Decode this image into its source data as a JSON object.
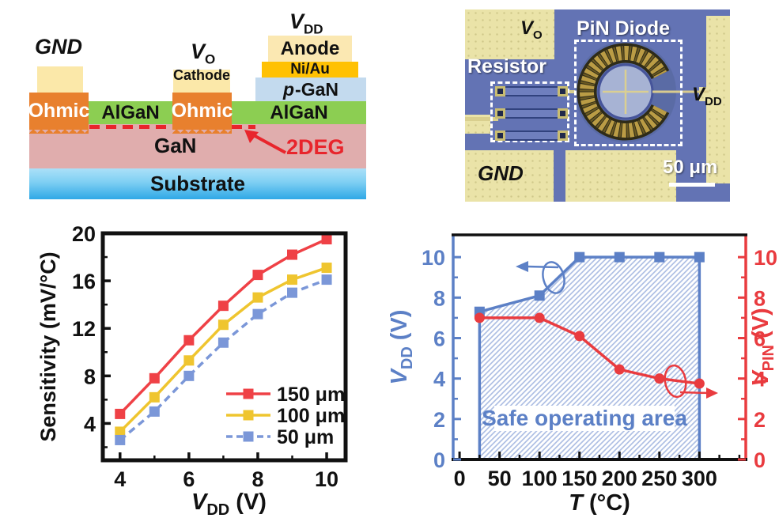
{
  "panel_a": {
    "gnd": "GND",
    "vo": {
      "main": "V",
      "sub": "O"
    },
    "vdd": {
      "main": "V",
      "sub": "DD"
    },
    "cathode": "Cathode",
    "anode": "Anode",
    "ni_au": "Ni/Au",
    "p_gan": {
      "italic": "p",
      "rest": "-GaN"
    },
    "ohmic_left": "Ohmic",
    "ohmic_mid": "Ohmic",
    "algan_left": "AlGaN",
    "algan_right": "AlGaN",
    "gan": "GaN",
    "two_deg": "2DEG",
    "substrate": "Substrate",
    "colors": {
      "pad": "#FBE8A9",
      "ohmic": "#E8802E",
      "algan": "#8CCE52",
      "gan": "#E0ADAD",
      "p_gan": "#C3DAEE",
      "ni_au": "#FFC103",
      "deg_red": "#E8252C",
      "substrate": "#2FA8E6"
    }
  },
  "panel_b": {
    "vo": {
      "main": "V",
      "sub": "O"
    },
    "pin_diode": "PiN Diode",
    "resistor": "Resistor",
    "vdd": {
      "main": "V",
      "sub": "DD"
    },
    "gnd": "GND",
    "scale_bar": "50 μm",
    "colors": {
      "chip": "#6373B4",
      "pad": "#EAE3A8"
    }
  },
  "chart_data": [
    {
      "type": "line",
      "title": "",
      "xlabel": {
        "main": "V",
        "sub": "DD",
        "unit": " (V)"
      },
      "ylabel": "Sensitivity (mV/°C)",
      "x": [
        4,
        5,
        6,
        7,
        8,
        9,
        10
      ],
      "xticks": [
        4,
        6,
        8,
        10
      ],
      "xminor": [
        5,
        7,
        9
      ],
      "yticks": [
        4,
        8,
        12,
        16,
        20
      ],
      "yminor": [
        2,
        6,
        10,
        14,
        18
      ],
      "xlim": [
        3.5,
        10.55
      ],
      "ylim": [
        0.9,
        20
      ],
      "grid": false,
      "legend_position": "lower right",
      "series": [
        {
          "name": "150 μm",
          "color": "#EF4146",
          "marker": "square",
          "dash": null,
          "values": [
            4.8,
            7.8,
            11.0,
            13.9,
            16.5,
            18.2,
            19.5
          ]
        },
        {
          "name": "100 μm",
          "color": "#EFC52F",
          "marker": "square",
          "dash": null,
          "values": [
            3.3,
            6.2,
            9.3,
            12.3,
            14.6,
            16.1,
            17.1
          ]
        },
        {
          "name": "50 μm",
          "color": "#7B97D8",
          "marker": "square",
          "dash": "9 6",
          "values": [
            2.6,
            5.0,
            8.0,
            10.8,
            13.2,
            15.0,
            16.1
          ]
        }
      ]
    },
    {
      "type": "line-dual-axis",
      "title": "",
      "xlabel": {
        "main": "T",
        "unit": " (°C)"
      },
      "ylabel_left": {
        "main": "V",
        "sub": "DD",
        "unit": " (V)"
      },
      "ylabel_right": {
        "main": "V",
        "sub": "PIN",
        "unit": " (V)"
      },
      "x": [
        25,
        100,
        150,
        200,
        250,
        300
      ],
      "xticks": [
        0,
        50,
        100,
        150,
        200,
        250,
        300
      ],
      "xminor": [
        25,
        75,
        125,
        175,
        225,
        275,
        325,
        350
      ],
      "yticks": [
        0,
        2,
        4,
        6,
        8,
        10
      ],
      "yminor": [
        1,
        3,
        5,
        7,
        9
      ],
      "xlim": [
        -8,
        358
      ],
      "ylim_left": [
        0,
        11.1
      ],
      "ylim_right": [
        0,
        11.1
      ],
      "series": [
        {
          "name": "VDD",
          "axis": "left",
          "color": "#5C80C6",
          "marker": "square",
          "values": [
            7.3,
            8.1,
            10,
            10,
            10,
            10
          ]
        },
        {
          "name": "VPIN",
          "axis": "right",
          "color": "#E93B3F",
          "marker": "circle",
          "values": [
            7.0,
            7.0,
            6.1,
            4.45,
            4.0,
            3.75
          ]
        }
      ],
      "shaded_region": {
        "label": "Safe operating area",
        "x_range": [
          25,
          300
        ],
        "hatch": "diagonal",
        "hatch_color": "#AFC0E4"
      }
    }
  ]
}
